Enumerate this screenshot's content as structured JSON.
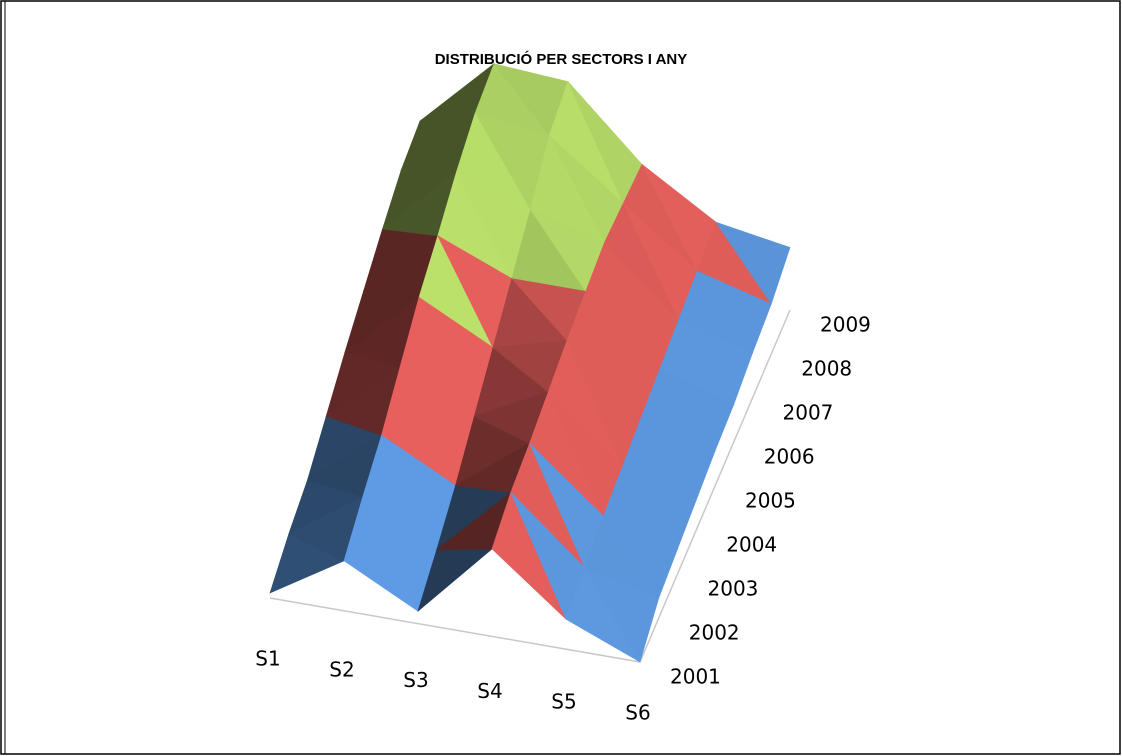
{
  "chart_data": {
    "type": "surface",
    "title": "DISTRIBUCIÓ PER SECTORS I ANY",
    "categories": [
      "S1",
      "S2",
      "S3",
      "S4",
      "S5",
      "S6"
    ],
    "colors": [
      "#4f81bd",
      "#c0504d",
      "#9bbb59"
    ],
    "series": [
      {
        "name": "2001",
        "values": [
          2,
          20,
          5,
          35,
          12,
          0
        ]
      },
      {
        "name": "2002",
        "values": [
          8,
          28,
          12,
          40,
          15,
          8
        ]
      },
      {
        "name": "2003",
        "values": [
          12,
          35,
          20,
          42,
          18,
          10
        ]
      },
      {
        "name": "2004",
        "values": [
          20,
          45,
          30,
          45,
          20,
          12
        ]
      },
      {
        "name": "2005",
        "values": [
          28,
          55,
          40,
          48,
          22,
          14
        ]
      },
      {
        "name": "2006",
        "values": [
          35,
          62,
          50,
          50,
          24,
          15
        ]
      },
      {
        "name": "2007",
        "values": [
          42,
          70,
          60,
          52,
          26,
          18
        ]
      },
      {
        "name": "2008",
        "values": [
          48,
          76,
          72,
          50,
          28,
          20
        ]
      },
      {
        "name": "2009",
        "values": [
          50,
          78,
          76,
          48,
          30,
          25
        ]
      }
    ]
  }
}
